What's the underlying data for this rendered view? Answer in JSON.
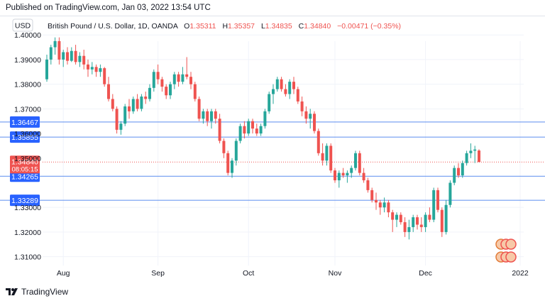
{
  "header": {
    "published": "Published on TradingView.com, Jan 03, 2022 13:54 UTC"
  },
  "legend": {
    "currency_button": "USD",
    "symbol": "British Pound / U.S. Dollar, 1D, OANDA",
    "o_label": "O",
    "o_value": "1.35311",
    "h_label": "H",
    "h_value": "1.35357",
    "l_label": "L",
    "l_value": "1.34835",
    "c_label": "C",
    "c_value": "1.34840",
    "change": "−0.00471 (−0.35%)"
  },
  "footer": {
    "brand": "TradingView"
  },
  "colors": {
    "up": "#26a69a",
    "down": "#ef5350",
    "hline": "#5b8def",
    "grid": "#f0f3fa",
    "axis_text": "#131722"
  },
  "chart_data": {
    "type": "candlestick",
    "title": "British Pound / U.S. Dollar, 1D, OANDA",
    "y_ticks": [
      "1.40000",
      "1.39000",
      "1.38000",
      "1.37000",
      "1.33000",
      "1.32000",
      "1.31000"
    ],
    "y_range": [
      1.307,
      1.4015
    ],
    "x_ticks": [
      "Aug",
      "Sep",
      "Oct",
      "Nov",
      "Dec",
      "2022"
    ],
    "x_tick_bar_index": [
      4,
      27,
      49,
      70,
      92,
      115
    ],
    "price_marker": {
      "value": 1.3484,
      "label": "1.34840",
      "countdown": "08:05:15"
    },
    "horizontal_levels": [
      {
        "value": 1.36467,
        "label": "1.36467"
      },
      {
        "value": 1.35855,
        "label": "1.35855"
      },
      {
        "value": 1.34265,
        "label": "1.34265"
      },
      {
        "value": 1.33289,
        "label": "1.33289"
      }
    ],
    "partially_visible_tick_labels": [
      "1.36000",
      "1.35000"
    ],
    "candles": [
      [
        1.382,
        1.392,
        1.381,
        1.39
      ],
      [
        1.39,
        1.396,
        1.388,
        1.395
      ],
      [
        1.395,
        1.399,
        1.392,
        1.3975
      ],
      [
        1.3975,
        1.399,
        1.388,
        1.39
      ],
      [
        1.39,
        1.394,
        1.387,
        1.393
      ],
      [
        1.393,
        1.395,
        1.388,
        1.3895
      ],
      [
        1.3895,
        1.395,
        1.389,
        1.3935
      ],
      [
        1.3935,
        1.396,
        1.388,
        1.389
      ],
      [
        1.389,
        1.393,
        1.387,
        1.3915
      ],
      [
        1.3915,
        1.394,
        1.386,
        1.388
      ],
      [
        1.388,
        1.39,
        1.383,
        1.386
      ],
      [
        1.386,
        1.389,
        1.384,
        1.387
      ],
      [
        1.387,
        1.388,
        1.383,
        1.385
      ],
      [
        1.385,
        1.388,
        1.383,
        1.3865
      ],
      [
        1.3865,
        1.387,
        1.379,
        1.38
      ],
      [
        1.38,
        1.383,
        1.373,
        1.374
      ],
      [
        1.374,
        1.376,
        1.369,
        1.37
      ],
      [
        1.37,
        1.371,
        1.36,
        1.3615
      ],
      [
        1.3615,
        1.365,
        1.3595,
        1.364
      ],
      [
        1.364,
        1.372,
        1.363,
        1.371
      ],
      [
        1.371,
        1.374,
        1.366,
        1.369
      ],
      [
        1.369,
        1.375,
        1.368,
        1.374
      ],
      [
        1.374,
        1.376,
        1.369,
        1.37
      ],
      [
        1.37,
        1.376,
        1.369,
        1.375
      ],
      [
        1.375,
        1.377,
        1.372,
        1.374
      ],
      [
        1.374,
        1.38,
        1.373,
        1.3785
      ],
      [
        1.3785,
        1.386,
        1.377,
        1.385
      ],
      [
        1.385,
        1.388,
        1.38,
        1.382
      ],
      [
        1.382,
        1.383,
        1.377,
        1.379
      ],
      [
        1.379,
        1.38,
        1.374,
        1.3755
      ],
      [
        1.3755,
        1.381,
        1.374,
        1.38
      ],
      [
        1.38,
        1.385,
        1.378,
        1.384
      ],
      [
        1.384,
        1.385,
        1.379,
        1.381
      ],
      [
        1.381,
        1.387,
        1.38,
        1.384
      ],
      [
        1.384,
        1.391,
        1.382,
        1.383
      ],
      [
        1.383,
        1.385,
        1.378,
        1.38
      ],
      [
        1.38,
        1.381,
        1.373,
        1.374
      ],
      [
        1.374,
        1.375,
        1.365,
        1.366
      ],
      [
        1.366,
        1.37,
        1.364,
        1.369
      ],
      [
        1.369,
        1.37,
        1.363,
        1.365
      ],
      [
        1.365,
        1.37,
        1.362,
        1.369
      ],
      [
        1.369,
        1.37,
        1.364,
        1.366
      ],
      [
        1.366,
        1.368,
        1.356,
        1.357
      ],
      [
        1.357,
        1.358,
        1.35,
        1.352
      ],
      [
        1.352,
        1.353,
        1.343,
        1.344
      ],
      [
        1.344,
        1.35,
        1.342,
        1.349
      ],
      [
        1.349,
        1.358,
        1.347,
        1.357
      ],
      [
        1.357,
        1.364,
        1.356,
        1.363
      ],
      [
        1.363,
        1.365,
        1.358,
        1.36
      ],
      [
        1.36,
        1.366,
        1.359,
        1.365
      ],
      [
        1.365,
        1.366,
        1.36,
        1.362
      ],
      [
        1.362,
        1.364,
        1.359,
        1.36
      ],
      [
        1.36,
        1.364,
        1.359,
        1.363
      ],
      [
        1.363,
        1.37,
        1.362,
        1.369
      ],
      [
        1.369,
        1.377,
        1.368,
        1.376
      ],
      [
        1.376,
        1.38,
        1.372,
        1.378
      ],
      [
        1.378,
        1.383,
        1.377,
        1.382
      ],
      [
        1.382,
        1.383,
        1.377,
        1.378
      ],
      [
        1.378,
        1.38,
        1.375,
        1.376
      ],
      [
        1.376,
        1.382,
        1.374,
        1.381
      ],
      [
        1.381,
        1.383,
        1.376,
        1.378
      ],
      [
        1.378,
        1.379,
        1.372,
        1.373
      ],
      [
        1.373,
        1.375,
        1.367,
        1.369
      ],
      [
        1.369,
        1.371,
        1.364,
        1.366
      ],
      [
        1.366,
        1.37,
        1.362,
        1.368
      ],
      [
        1.368,
        1.369,
        1.36,
        1.361
      ],
      [
        1.361,
        1.362,
        1.351,
        1.352
      ],
      [
        1.352,
        1.356,
        1.347,
        1.349
      ],
      [
        1.349,
        1.356,
        1.347,
        1.355
      ],
      [
        1.355,
        1.356,
        1.344,
        1.345
      ],
      [
        1.345,
        1.346,
        1.34,
        1.341
      ],
      [
        1.341,
        1.345,
        1.338,
        1.344
      ],
      [
        1.344,
        1.346,
        1.342,
        1.343
      ],
      [
        1.343,
        1.345,
        1.34,
        1.344
      ],
      [
        1.344,
        1.347,
        1.342,
        1.346
      ],
      [
        1.346,
        1.353,
        1.345,
        1.352
      ],
      [
        1.352,
        1.353,
        1.343,
        1.344
      ],
      [
        1.344,
        1.346,
        1.34,
        1.341
      ],
      [
        1.341,
        1.342,
        1.336,
        1.337
      ],
      [
        1.337,
        1.338,
        1.332,
        1.333
      ],
      [
        1.333,
        1.336,
        1.329,
        1.332
      ],
      [
        1.332,
        1.333,
        1.327,
        1.33
      ],
      [
        1.33,
        1.334,
        1.328,
        1.332
      ],
      [
        1.332,
        1.333,
        1.326,
        1.328
      ],
      [
        1.328,
        1.329,
        1.32,
        1.325
      ],
      [
        1.325,
        1.328,
        1.322,
        1.327
      ],
      [
        1.327,
        1.328,
        1.323,
        1.324
      ],
      [
        1.324,
        1.326,
        1.318,
        1.32
      ],
      [
        1.32,
        1.325,
        1.317,
        1.322
      ],
      [
        1.322,
        1.327,
        1.32,
        1.326
      ],
      [
        1.326,
        1.327,
        1.321,
        1.323
      ],
      [
        1.323,
        1.326,
        1.32,
        1.322
      ],
      [
        1.322,
        1.328,
        1.32,
        1.327
      ],
      [
        1.327,
        1.33,
        1.324,
        1.325
      ],
      [
        1.325,
        1.338,
        1.324,
        1.337
      ],
      [
        1.337,
        1.338,
        1.328,
        1.329
      ],
      [
        1.329,
        1.33,
        1.318,
        1.32
      ],
      [
        1.32,
        1.333,
        1.319,
        1.331
      ],
      [
        1.331,
        1.341,
        1.33,
        1.34
      ],
      [
        1.34,
        1.347,
        1.339,
        1.346
      ],
      [
        1.346,
        1.348,
        1.342,
        1.343
      ],
      [
        1.343,
        1.349,
        1.342,
        1.348
      ],
      [
        1.348,
        1.353,
        1.347,
        1.352
      ],
      [
        1.352,
        1.356,
        1.35,
        1.353
      ],
      [
        1.353,
        1.355,
        1.348,
        1.3535
      ],
      [
        1.3531,
        1.3536,
        1.3484,
        1.3484
      ]
    ]
  }
}
